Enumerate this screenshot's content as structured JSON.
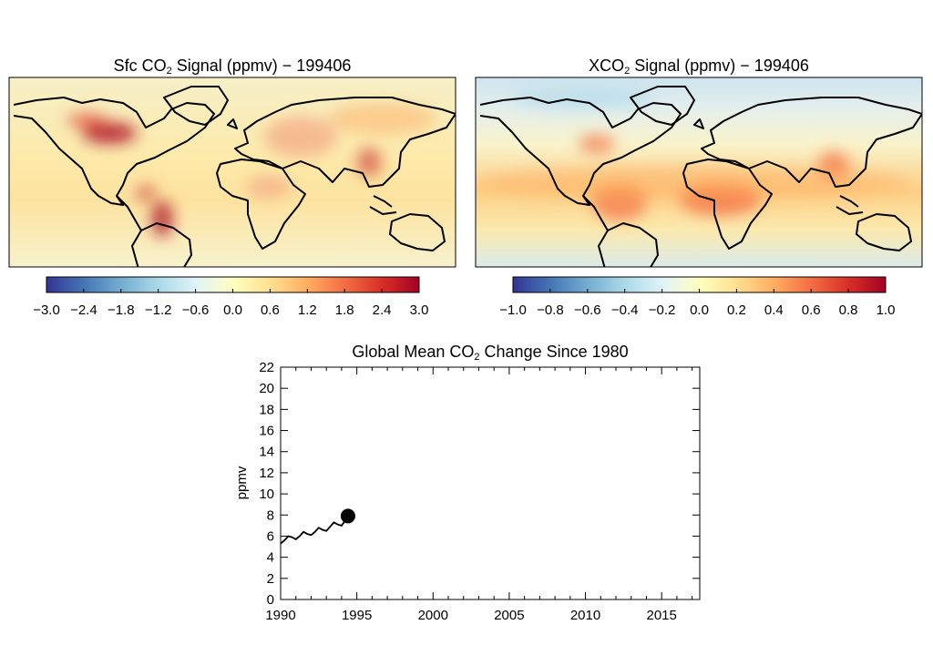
{
  "maps": [
    {
      "title_prefix": "Sfc CO",
      "title_sub": "2",
      "title_suffix": " Signal (ppmv) − 199406",
      "colorbar_ticks": [
        "−3.0",
        "−2.4",
        "−1.8",
        "−1.2",
        "−0.6",
        "0.0",
        "0.6",
        "1.2",
        "1.8",
        "2.4",
        "3.0"
      ],
      "range": [
        -3.0,
        3.0
      ]
    },
    {
      "title_prefix": "XCO",
      "title_sub": "2",
      "title_suffix": " Signal (ppmv) − 199406",
      "colorbar_ticks": [
        "−1.0",
        "−0.8",
        "−0.6",
        "−0.4",
        "−0.2",
        "0.0",
        "0.2",
        "0.4",
        "0.6",
        "0.8",
        "1.0"
      ],
      "range": [
        -1.0,
        1.0
      ]
    }
  ],
  "colorscale": [
    "#313695",
    "#4575b4",
    "#74add1",
    "#abd9e9",
    "#e0f3f8",
    "#ffffbf",
    "#fee090",
    "#fdae61",
    "#f46d43",
    "#d73027",
    "#a50026"
  ],
  "chart_data": {
    "type": "line",
    "title_prefix": "Global Mean CO",
    "title_sub": "2",
    "title_suffix": " Change Since 1980",
    "ylabel": "ppmv",
    "xlabel": "",
    "xlim": [
      1990,
      2017.5
    ],
    "ylim": [
      0,
      22
    ],
    "x_ticks": [
      1990,
      1995,
      2000,
      2005,
      2010,
      2015
    ],
    "y_ticks": [
      0,
      2,
      4,
      6,
      8,
      10,
      12,
      14,
      16,
      18,
      20,
      22
    ],
    "series": [
      {
        "x": [
          1990.0,
          1990.25,
          1990.5,
          1990.75,
          1991.0,
          1991.25,
          1991.5,
          1991.75,
          1992.0,
          1992.25,
          1992.5,
          1992.75,
          1993.0,
          1993.25,
          1993.5,
          1993.75,
          1994.0,
          1994.25,
          1994.42
        ],
        "y": [
          5.3,
          5.6,
          6.0,
          5.9,
          5.7,
          6.0,
          6.4,
          6.2,
          6.1,
          6.4,
          6.8,
          6.6,
          6.5,
          6.9,
          7.3,
          7.1,
          7.0,
          7.5,
          7.9
        ]
      }
    ],
    "marker": {
      "x": 1994.42,
      "y": 7.9
    }
  }
}
